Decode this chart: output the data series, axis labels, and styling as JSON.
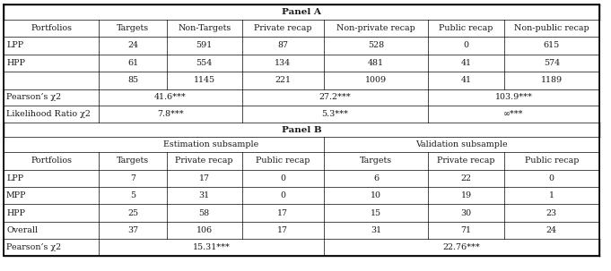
{
  "title_A": "Panel A",
  "title_B": "Panel B",
  "panel_a_headers": [
    "Portfolios",
    "Targets",
    "Non-Targets",
    "Private recap",
    "Non-private recap",
    "Public recap",
    "Non-public recap"
  ],
  "panel_a_rows": [
    [
      "LPP",
      "24",
      "591",
      "87",
      "528",
      "0",
      "615"
    ],
    [
      "HPP",
      "61",
      "554",
      "134",
      "481",
      "41",
      "574"
    ],
    [
      "",
      "85",
      "1145",
      "221",
      "1009",
      "41",
      "1189"
    ]
  ],
  "panel_a_stat_rows": [
    [
      "Pearson’s χ2",
      "41.6***",
      "27.2***",
      "103.9***"
    ],
    [
      "Likelihood Ratio χ2",
      "7.8***",
      "5.3***",
      "∞***"
    ]
  ],
  "panel_b_subheaders": [
    "Estimation subsample",
    "Validation subsample"
  ],
  "panel_b_headers": [
    "Portfolios",
    "Targets",
    "Private recap",
    "Public recap",
    "Targets",
    "Private recap",
    "Public recap"
  ],
  "panel_b_rows": [
    [
      "LPP",
      "7",
      "17",
      "0",
      "6",
      "22",
      "0"
    ],
    [
      "MPP",
      "5",
      "31",
      "0",
      "10",
      "19",
      "1"
    ],
    [
      "HPP",
      "25",
      "58",
      "17",
      "15",
      "30",
      "23"
    ],
    [
      "Overall",
      "37",
      "106",
      "17",
      "31",
      "71",
      "24"
    ]
  ],
  "panel_b_stat_rows": [
    [
      "Pearson’s χ2",
      "15.31***",
      "22.76***"
    ]
  ],
  "bg_color": "#ffffff",
  "text_color": "#1a1a1a",
  "font_size": 6.8,
  "header_font_size": 6.8,
  "title_font_size": 7.5
}
